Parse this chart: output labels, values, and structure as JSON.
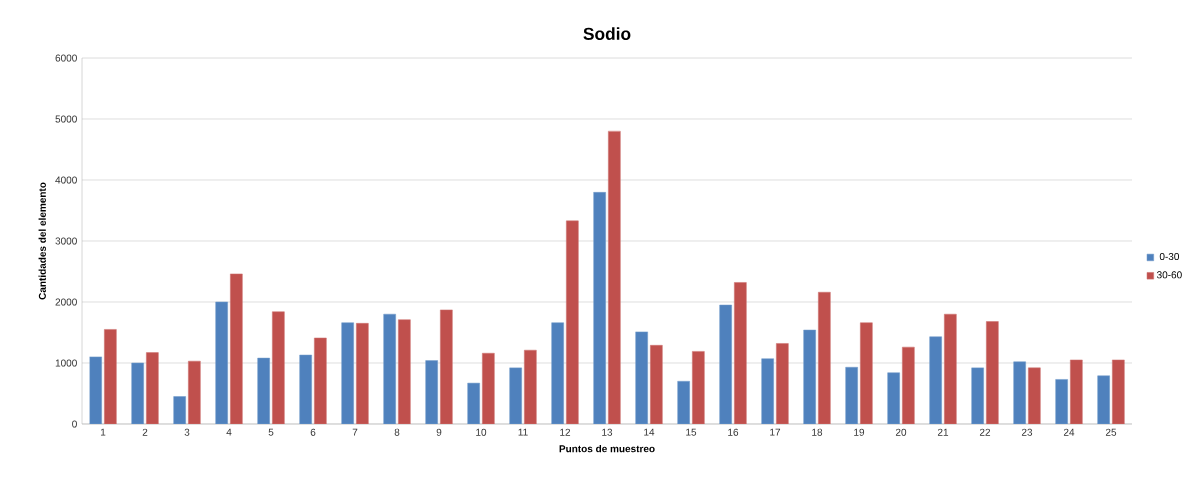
{
  "chart_data": {
    "type": "bar",
    "title": "Sodio",
    "xlabel": "Puntos de muestreo",
    "ylabel": "Cantidades  del elemento",
    "categories": [
      "1",
      "2",
      "3",
      "4",
      "5",
      "6",
      "7",
      "8",
      "9",
      "10",
      "11",
      "12",
      "13",
      "14",
      "15",
      "16",
      "17",
      "18",
      "19",
      "20",
      "21",
      "22",
      "23",
      "24",
      "25"
    ],
    "series": [
      {
        "name": "0-30",
        "color": "#4f81bd",
        "values": [
          1100,
          1000,
          450,
          2000,
          1080,
          1130,
          1660,
          1800,
          1040,
          670,
          920,
          1660,
          3800,
          1510,
          700,
          1950,
          1070,
          1540,
          930,
          840,
          1430,
          920,
          1020,
          730,
          790
        ]
      },
      {
        "name": "30-60",
        "color": "#c0504d",
        "values": [
          1550,
          1170,
          1030,
          2460,
          1840,
          1410,
          1650,
          1710,
          1870,
          1160,
          1210,
          3330,
          4800,
          1290,
          1190,
          2320,
          1320,
          2160,
          1660,
          1260,
          1800,
          1680,
          920,
          1050,
          1050
        ]
      }
    ],
    "ylim": [
      0,
      6000
    ],
    "yticks": [
      0,
      1000,
      2000,
      3000,
      4000,
      5000,
      6000
    ],
    "grid": "y",
    "legend": "right"
  }
}
